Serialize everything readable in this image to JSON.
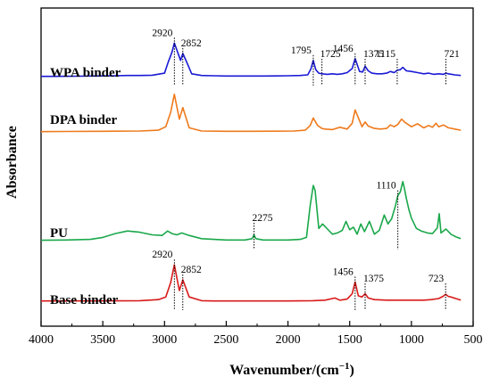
{
  "chart_data": {
    "type": "line",
    "title": "",
    "xlabel": "Wavenumber/(cm",
    "xlabel_sup": "−1",
    "xlabel_close": ")",
    "ylabel": "Absorbance",
    "xlim": [
      4000,
      500
    ],
    "x_reversed": true,
    "x_ticks": [
      4000,
      3500,
      3000,
      2500,
      2000,
      1500,
      1000,
      500
    ],
    "grid": false,
    "legend": "none",
    "series": [
      {
        "name": "WPA binder",
        "color": "#1a1ad6",
        "x": [
          600,
          650,
          700,
          721,
          740,
          780,
          820,
          860,
          900,
          950,
          1000,
          1040,
          1070,
          1090,
          1115,
          1140,
          1170,
          1200,
          1240,
          1280,
          1320,
          1350,
          1375,
          1395,
          1420,
          1456,
          1480,
          1520,
          1560,
          1600,
          1640,
          1680,
          1725,
          1750,
          1775,
          1795,
          1815,
          1840,
          1900,
          2000,
          2100,
          2200,
          2300,
          2400,
          2500,
          2600,
          2700,
          2780,
          2820,
          2852,
          2870,
          2900,
          2920,
          2940,
          2970,
          3000,
          3100,
          3200,
          3300,
          3400,
          3500,
          3600,
          3700,
          3800,
          3900,
          4000
        ],
        "y": [
          0.2,
          0.3,
          0.5,
          0.6,
          0.4,
          0.5,
          0.4,
          0.6,
          0.5,
          0.7,
          0.9,
          1.0,
          1.6,
          1.2,
          1.1,
          0.7,
          0.9,
          0.6,
          0.5,
          0.5,
          0.6,
          1.0,
          1.8,
          0.8,
          0.9,
          3.1,
          1.4,
          0.7,
          0.5,
          0.4,
          0.5,
          0.4,
          0.5,
          0.6,
          1.2,
          2.8,
          1.3,
          0.3,
          0.2,
          0.15,
          0.12,
          0.1,
          0.1,
          0.1,
          0.1,
          0.15,
          0.2,
          0.5,
          2.5,
          4.0,
          2.8,
          4.6,
          5.8,
          4.2,
          2.5,
          0.6,
          0.25,
          0.2,
          0.2,
          0.15,
          0.12,
          0.1,
          0.08,
          0.06,
          0.05,
          0.05
        ]
      },
      {
        "name": "DPA binder",
        "color": "#ee7a1c",
        "x": [
          600,
          650,
          700,
          740,
          780,
          800,
          830,
          860,
          900,
          950,
          1000,
          1050,
          1080,
          1110,
          1140,
          1170,
          1200,
          1250,
          1300,
          1350,
          1375,
          1400,
          1456,
          1480,
          1520,
          1580,
          1640,
          1700,
          1725,
          1760,
          1795,
          1820,
          1860,
          1950,
          2100,
          2300,
          2500,
          2700,
          2800,
          2852,
          2880,
          2920,
          2950,
          2990,
          3050,
          3200,
          3500,
          3800,
          4000
        ],
        "y": [
          0.3,
          0.5,
          0.7,
          1.2,
          0.9,
          1.5,
          0.8,
          1.1,
          0.7,
          1.4,
          0.9,
          1.6,
          2.2,
          1.3,
          0.9,
          1.2,
          0.6,
          0.5,
          0.6,
          1.0,
          1.7,
          0.9,
          3.8,
          1.5,
          0.5,
          0.8,
          0.4,
          0.5,
          0.6,
          1.1,
          2.4,
          1.1,
          0.3,
          0.15,
          0.12,
          0.1,
          0.1,
          0.15,
          0.7,
          4.2,
          2.2,
          6.5,
          3.4,
          0.9,
          0.3,
          0.15,
          0.1,
          0.07,
          0.05
        ]
      },
      {
        "name": "PU",
        "color": "#1aa84a",
        "x": [
          600,
          640,
          680,
          720,
          760,
          775,
          790,
          830,
          870,
          920,
          960,
          1000,
          1020,
          1040,
          1060,
          1070,
          1090,
          1110,
          1130,
          1160,
          1190,
          1220,
          1260,
          1300,
          1340,
          1380,
          1410,
          1440,
          1470,
          1500,
          1530,
          1560,
          1600,
          1640,
          1680,
          1720,
          1750,
          1780,
          1795,
          1820,
          1850,
          1900,
          2000,
          2200,
          2260,
          2275,
          2290,
          2350,
          2500,
          2700,
          2800,
          2860,
          2900,
          2940,
          2975,
          3020,
          3100,
          3200,
          3300,
          3400,
          3500,
          3600,
          3800,
          4000
        ],
        "y": [
          0.3,
          0.6,
          1.0,
          1.8,
          1.2,
          4.2,
          2.0,
          1.1,
          1.2,
          1.5,
          1.9,
          3.5,
          4.8,
          6.5,
          8.4,
          9.2,
          7.6,
          7.0,
          5.4,
          3.4,
          2.6,
          4.0,
          1.6,
          1.0,
          3.0,
          1.4,
          2.6,
          1.0,
          2.1,
          1.7,
          3.0,
          1.6,
          1.2,
          1.0,
          1.8,
          2.6,
          1.9,
          7.8,
          8.6,
          5.5,
          0.5,
          0.2,
          0.1,
          0.1,
          0.3,
          0.9,
          0.3,
          0.1,
          0.1,
          0.3,
          0.8,
          1.2,
          0.9,
          1.1,
          1.5,
          0.8,
          0.9,
          1.3,
          1.5,
          1.1,
          0.5,
          0.2,
          0.1,
          0.05
        ]
      },
      {
        "name": "Base binder",
        "color": "#d81a1a",
        "x": [
          600,
          640,
          680,
          700,
          723,
          745,
          780,
          840,
          900,
          1000,
          1100,
          1200,
          1300,
          1350,
          1375,
          1400,
          1430,
          1456,
          1480,
          1520,
          1580,
          1620,
          1700,
          1800,
          2000,
          2200,
          2400,
          2600,
          2700,
          2800,
          2852,
          2880,
          2920,
          2950,
          2990,
          3050,
          3200,
          3500,
          3800,
          4000
        ],
        "y": [
          0.2,
          0.5,
          0.8,
          0.9,
          1.3,
          0.9,
          0.5,
          0.3,
          0.2,
          0.2,
          0.2,
          0.2,
          0.3,
          0.6,
          1.4,
          0.8,
          1.0,
          3.6,
          1.4,
          0.4,
          0.2,
          0.6,
          0.2,
          0.1,
          0.05,
          0.05,
          0.05,
          0.05,
          0.1,
          0.8,
          4.0,
          2.0,
          6.8,
          3.5,
          0.8,
          0.3,
          0.1,
          0.07,
          0.05,
          0.05
        ]
      }
    ],
    "annotations": [
      {
        "series": 0,
        "text": "2920",
        "x": 2920
      },
      {
        "series": 0,
        "text": "2852",
        "x": 2852
      },
      {
        "series": 0,
        "text": "1795",
        "x": 1795
      },
      {
        "series": 0,
        "text": "1725",
        "x": 1725
      },
      {
        "series": 0,
        "text": "1456",
        "x": 1456
      },
      {
        "series": 0,
        "text": "1375",
        "x": 1375
      },
      {
        "series": 0,
        "text": "1115",
        "x": 1115
      },
      {
        "series": 0,
        "text": "721",
        "x": 721
      },
      {
        "series": 2,
        "text": "1110",
        "x": 1110
      },
      {
        "series": 2,
        "text": "2275",
        "x": 2275
      },
      {
        "series": 3,
        "text": "2920",
        "x": 2920
      },
      {
        "series": 3,
        "text": "2852",
        "x": 2852
      },
      {
        "series": 3,
        "text": "1456",
        "x": 1456
      },
      {
        "series": 3,
        "text": "1375",
        "x": 1375
      },
      {
        "series": 3,
        "text": "723",
        "x": 723
      }
    ]
  }
}
